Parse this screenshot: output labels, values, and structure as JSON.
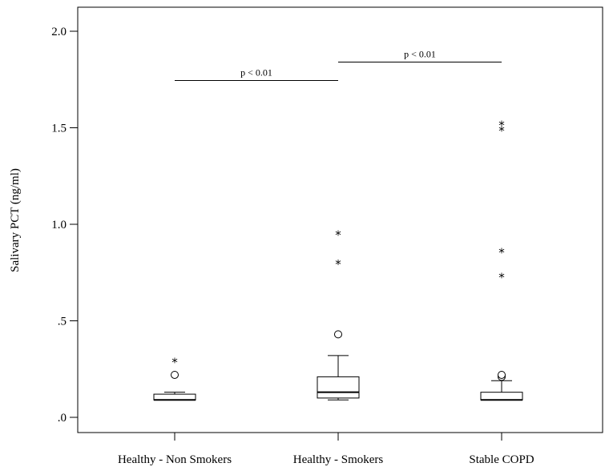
{
  "chart_data": {
    "type": "boxplot",
    "title": "",
    "ylabel": "Salivary PCT (ng/ml)",
    "xlabel": "",
    "ylim": [
      -0.08,
      2.12
    ],
    "yticks": [
      0.0,
      0.5,
      1.0,
      1.5,
      2.0
    ],
    "ytick_labels": [
      ".0",
      ".5",
      "1.0",
      "1.5",
      "2.0"
    ],
    "grid": false,
    "categories": [
      "Healthy - Non Smokers",
      "Healthy - Smokers",
      "Stable COPD"
    ],
    "boxes": [
      {
        "category": "Healthy - Non Smokers",
        "whisker_low": 0.09,
        "q1": 0.09,
        "median": 0.09,
        "q3": 0.12,
        "whisker_high": 0.13,
        "outliers": [
          0.22
        ],
        "extremes": [
          0.3
        ]
      },
      {
        "category": "Healthy - Smokers",
        "whisker_low": 0.09,
        "q1": 0.1,
        "median": 0.13,
        "q3": 0.21,
        "whisker_high": 0.32,
        "outliers": [
          0.43
        ],
        "extremes": [
          0.81,
          0.96
        ]
      },
      {
        "category": "Stable COPD",
        "whisker_low": 0.09,
        "q1": 0.09,
        "median": 0.09,
        "q3": 0.13,
        "whisker_high": 0.19,
        "outliers": [
          0.21,
          0.22
        ],
        "extremes": [
          0.74,
          0.87,
          1.5,
          1.53
        ]
      }
    ],
    "annotations": [
      {
        "text": "p < 0.01",
        "from": "Healthy - Non Smokers",
        "to": "Healthy - Smokers",
        "y": 1.745
      },
      {
        "text": "p < 0.01",
        "from": "Healthy - Smokers",
        "to": "Stable COPD",
        "y": 1.84
      }
    ]
  }
}
